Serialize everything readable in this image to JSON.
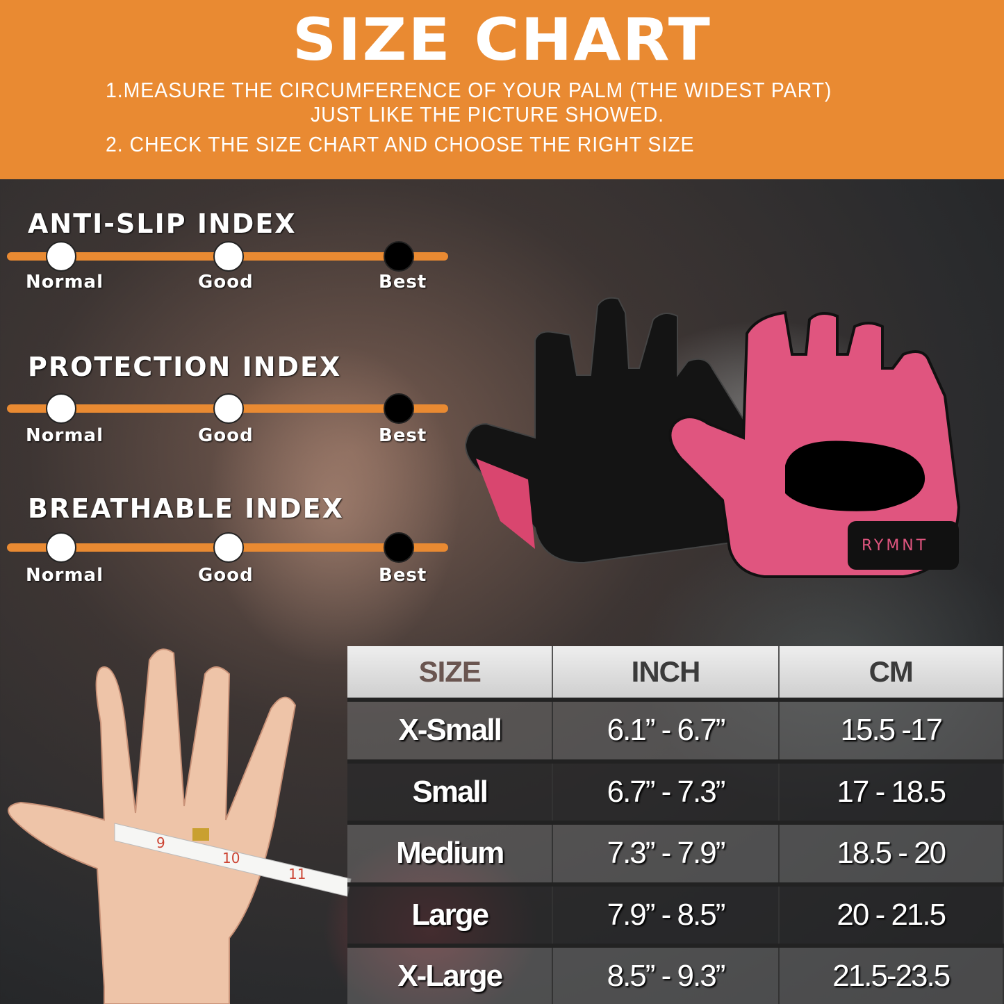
{
  "header": {
    "title": "SIZE CHART",
    "step1_line1": "1.MEASURE THE CIRCUMFERENCE OF YOUR PALM (THE WIDEST PART)",
    "step1_line2": "JUST LIKE THE PICTURE SHOWED.",
    "step2": "2. CHECK THE SIZE CHART AND CHOOSE THE RIGHT SIZE",
    "color": "#E98A32"
  },
  "indexes": [
    {
      "title": "ANTI-SLIP INDEX",
      "levels": [
        "Normal",
        "Good",
        "Best"
      ],
      "rating": "Best"
    },
    {
      "title": "PROTECTION INDEX",
      "levels": [
        "Normal",
        "Good",
        "Best"
      ],
      "rating": "Best"
    },
    {
      "title": "BREATHABLE INDEX",
      "levels": [
        "Normal",
        "Good",
        "Best"
      ],
      "rating": "Best"
    }
  ],
  "product": {
    "brand": "RYMNT"
  },
  "tape": {
    "marks": [
      "9",
      "10",
      "11"
    ]
  },
  "table": {
    "headers": [
      "SIZE",
      "INCH",
      "CM"
    ],
    "rows": [
      [
        "X-Small",
        "6.1” - 6.7”",
        "15.5 -17"
      ],
      [
        "Small",
        "6.7” - 7.3”",
        "17 - 18.5"
      ],
      [
        "Medium",
        "7.3” - 7.9”",
        "18.5 - 20"
      ],
      [
        "Large",
        "7.9” - 8.5”",
        "20 - 21.5"
      ],
      [
        "X-Large",
        "8.5” - 9.3”",
        "21.5-23.5"
      ]
    ]
  }
}
